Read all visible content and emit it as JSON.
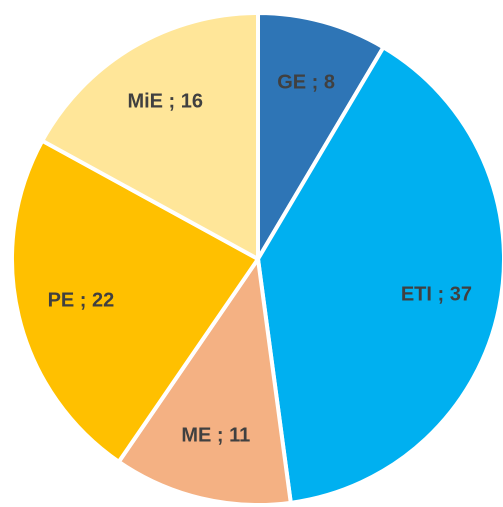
{
  "chart_data": {
    "type": "pie",
    "values": [
      8,
      37,
      11,
      22,
      16
    ],
    "value_labels": [
      "GE ; 8",
      "ETI ; 37",
      "ME ; 11",
      "PE ; 22",
      "MiE ; 16"
    ],
    "colors": [
      "#2e75b6",
      "#00b0f0",
      "#f4b183",
      "#ffc000",
      "#ffe699"
    ]
  }
}
